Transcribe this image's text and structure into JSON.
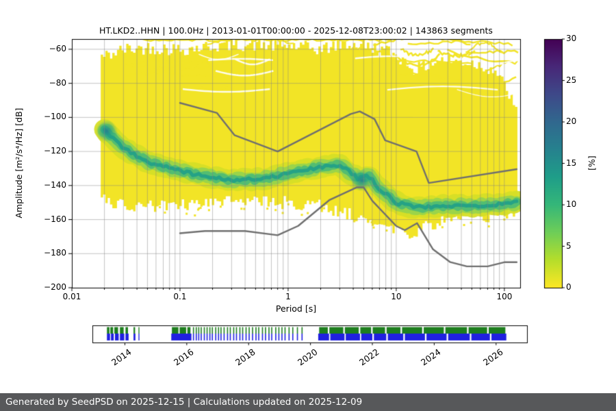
{
  "colors": {
    "page_bg": "#ffffff",
    "status_bar_bg": "#57585a",
    "status_bar_text": "#ffffff"
  },
  "status_bar": {
    "text": "Generated by SeedPSD on 2025-12-15 | Calculations updated on 2025-12-09"
  },
  "chart_data": {
    "type": "heatmap",
    "title": "HT.LKD2..HHN | 100.0Hz | 2013-01-01T00:00:00 - 2025-12-08T23:00:02 | 143863 segments",
    "xlabel": "Period [s]",
    "ylabel": "Amplitude [m²/s⁴/Hz] [dB]",
    "x_scale": "log",
    "xlim": [
      0.01,
      140
    ],
    "ylim": [
      -200,
      -54
    ],
    "grid": true,
    "xticks": [
      0.01,
      0.1,
      1,
      10,
      100
    ],
    "xtick_labels": [
      "0.01",
      "0.1",
      "1",
      "10",
      "100"
    ],
    "yticks": [
      -200,
      -180,
      -160,
      -140,
      -120,
      -100,
      -80,
      -60
    ],
    "ytick_labels": [
      "−200",
      "−180",
      "−160",
      "−140",
      "−120",
      "−100",
      "−80",
      "−60"
    ],
    "colorbar": {
      "label": "[%]",
      "min": 0,
      "max": 30,
      "ticks": [
        0,
        5,
        10,
        15,
        20,
        25,
        30
      ],
      "tick_labels": [
        "0",
        "5",
        "10",
        "15",
        "20",
        "25",
        "30"
      ],
      "colors_bottom_to_top": [
        "#fde725",
        "#b5de2b",
        "#6ece58",
        "#35b779",
        "#1f9e89",
        "#26828e",
        "#31688e",
        "#3e4989",
        "#482878",
        "#440154"
      ]
    },
    "colors": {
      "density_low": "#f2e426",
      "ridge_layers": [
        "rgba(213,222,38,0.95)",
        "rgba(144,210,80,0.85)",
        "rgba(70,185,120,0.85)",
        "rgba(32,158,136,0.9)"
      ],
      "hotspot": "rgba(39,127,142,0.95)",
      "noise_model_line": "#6f6f6f",
      "grid": "rgba(130,130,130,0.6)",
      "frame": "#000000"
    },
    "density_envelope": {
      "periods": [
        0.02,
        0.03,
        0.05,
        0.1,
        0.3,
        1,
        2,
        3,
        5,
        8,
        10,
        15,
        25,
        50,
        80,
        110,
        130
      ],
      "upper_db": [
        -64,
        -60,
        -59,
        -60,
        -57,
        -58,
        -60,
        -57,
        -58,
        -61,
        -64,
        -72,
        -66,
        -68,
        -72,
        -87,
        -99
      ],
      "lower_db": [
        -148,
        -151,
        -152,
        -152,
        -150,
        -150,
        -152,
        -155,
        -159,
        -163,
        -166,
        -168,
        -161,
        -158,
        -158,
        -157,
        -155
      ]
    },
    "mode_ridge": {
      "periods": [
        0.02,
        0.03,
        0.05,
        0.08,
        0.15,
        0.3,
        0.6,
        1,
        2,
        3,
        4.5,
        5.5,
        7,
        10,
        15,
        25,
        50,
        90,
        130
      ],
      "db": [
        -107,
        -118,
        -126,
        -130,
        -134,
        -137,
        -136,
        -133,
        -129,
        -128,
        -136,
        -134,
        -142,
        -150,
        -153,
        -152,
        -152,
        -151,
        -150
      ]
    },
    "hotspots": [
      {
        "period": 0.021,
        "db": -108
      },
      {
        "period": 4.8,
        "db": -137
      }
    ],
    "noise_models": {
      "high": {
        "periods": [
          0.1,
          0.22,
          0.32,
          0.8,
          3.8,
          4.6,
          6.3,
          7.9,
          15.4,
          20.0,
          130.0
        ],
        "db": [
          -91.5,
          -97.4,
          -110.5,
          -120.0,
          -98.0,
          -96.5,
          -101.0,
          -113.5,
          -120.0,
          -138.5,
          -130.4
        ]
      },
      "low": {
        "periods": [
          0.1,
          0.17,
          0.4,
          0.8,
          1.24,
          2.4,
          4.3,
          5.0,
          6.0,
          10.0,
          12.0,
          15.6,
          21.9,
          31.6,
          45.0,
          70.0,
          101.0,
          130.0
        ],
        "db": [
          -168.0,
          -166.7,
          -166.7,
          -169.2,
          -163.7,
          -148.6,
          -141.1,
          -141.1,
          -149.0,
          -163.8,
          -166.2,
          -162.1,
          -177.5,
          -185.0,
          -187.5,
          -187.5,
          -185.0,
          -185.0
        ]
      }
    }
  },
  "timeline": {
    "range": [
      2012.95,
      2027.0
    ],
    "year_ticks": [
      2014,
      2016,
      2018,
      2020,
      2022,
      2024,
      2026
    ],
    "year_labels": [
      "2014",
      "2016",
      "2018",
      "2020",
      "2022",
      "2024",
      "2026"
    ],
    "colors": {
      "green": "#1e7e1e",
      "blue": "#2020e0"
    },
    "green_segments": [
      [
        2013.42,
        2013.5
      ],
      [
        2013.53,
        2013.62
      ],
      [
        2013.66,
        2013.78
      ],
      [
        2013.84,
        2013.96
      ],
      [
        2014.02,
        2014.1
      ],
      [
        2014.28,
        2014.33
      ],
      [
        2014.44,
        2014.47
      ],
      [
        2015.52,
        2015.73
      ],
      [
        2015.77,
        2015.98
      ],
      [
        2016.02,
        2016.12
      ],
      [
        2020.28,
        2020.56
      ],
      [
        2020.61,
        2021.06
      ],
      [
        2021.11,
        2021.56
      ],
      [
        2021.61,
        2021.96
      ],
      [
        2022.01,
        2022.41
      ],
      [
        2022.46,
        2022.91
      ],
      [
        2022.96,
        2023.61
      ],
      [
        2023.66,
        2024.31
      ],
      [
        2024.36,
        2025.06
      ],
      [
        2025.11,
        2025.71
      ],
      [
        2025.76,
        2026.3
      ]
    ],
    "blue_segments": [
      [
        2013.42,
        2013.52
      ],
      [
        2013.55,
        2013.64
      ],
      [
        2013.68,
        2013.8
      ],
      [
        2013.84,
        2013.98
      ],
      [
        2014.02,
        2014.12
      ],
      [
        2014.28,
        2014.34
      ],
      [
        2014.44,
        2014.47
      ],
      [
        2015.5,
        2016.15
      ],
      [
        2020.25,
        2020.6
      ],
      [
        2020.64,
        2021.1
      ],
      [
        2021.14,
        2021.6
      ],
      [
        2021.64,
        2022.0
      ],
      [
        2022.05,
        2022.45
      ],
      [
        2022.5,
        2023.0
      ],
      [
        2023.05,
        2023.7
      ],
      [
        2023.75,
        2024.4
      ],
      [
        2024.45,
        2025.15
      ],
      [
        2025.2,
        2025.8
      ],
      [
        2025.85,
        2026.33
      ]
    ],
    "sparse_lines": [
      2016.2,
      2016.29,
      2016.37,
      2016.45,
      2016.55,
      2016.64,
      2016.73,
      2016.81,
      2016.92,
      2017.01,
      2017.09,
      2017.19,
      2017.3,
      2017.39,
      2017.5,
      2017.59,
      2017.7,
      2017.79,
      2017.9,
      2018.0,
      2018.11,
      2018.22,
      2018.31,
      2018.43,
      2018.53,
      2018.64,
      2018.73,
      2018.86,
      2018.96,
      2019.06,
      2019.16,
      2019.29,
      2019.41,
      2019.56,
      2019.71
    ]
  }
}
